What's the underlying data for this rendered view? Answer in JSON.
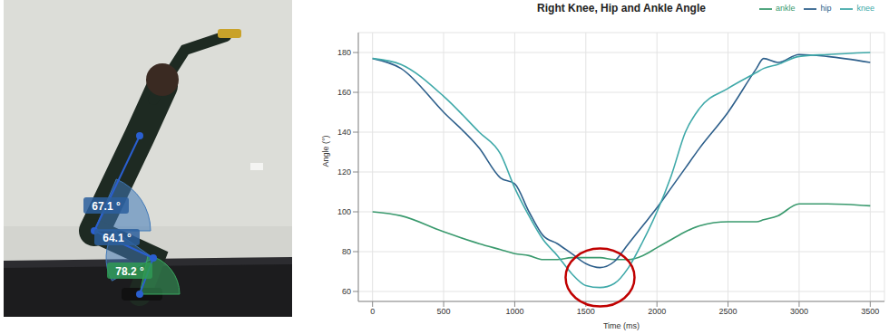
{
  "chart_data": {
    "type": "line",
    "title": "Right Knee, Hip and Ankle Angle",
    "x_label": "Time (ms)",
    "y_label": "Angle (°)",
    "x": [
      0,
      200,
      500,
      750,
      900,
      1000,
      1100,
      1200,
      1300,
      1400,
      1500,
      1600,
      1700,
      1800,
      1900,
      2000,
      2100,
      2200,
      2300,
      2500,
      2700,
      2750,
      2850,
      3000,
      3200,
      3500
    ],
    "series": [
      {
        "name": "ankle",
        "color": "#3a9a6e",
        "values": [
          100,
          98,
          90,
          84,
          81,
          79,
          78,
          76,
          76,
          77,
          77,
          77,
          76,
          76,
          78,
          82,
          86,
          90,
          93,
          95,
          95,
          96,
          98,
          104,
          104,
          103
        ]
      },
      {
        "name": "hip",
        "color": "#2d5f8b",
        "values": [
          177,
          172,
          150,
          132,
          117,
          114,
          100,
          88,
          84,
          79,
          74,
          72,
          75,
          84,
          93,
          102,
          112,
          122,
          132,
          150,
          172,
          177,
          175,
          179,
          178,
          175
        ]
      },
      {
        "name": "knee",
        "color": "#3fa9a9",
        "values": [
          177,
          174,
          158,
          140,
          129,
          112,
          98,
          86,
          78,
          69,
          63,
          62,
          64,
          72,
          85,
          100,
          118,
          140,
          152,
          162,
          170,
          172,
          174,
          178,
          179,
          180
        ]
      }
    ],
    "xlim": [
      -100,
      3600
    ],
    "xticks": [
      0,
      500,
      1000,
      1500,
      2000,
      2500,
      3000,
      3500
    ],
    "ylim": [
      55,
      190
    ],
    "yticks": [
      60,
      80,
      100,
      120,
      140,
      160,
      180
    ],
    "grid": true,
    "legend": "top right"
  },
  "photo": {
    "angle_labels": [
      "67.1 °",
      "64.1 °",
      "78.2 °"
    ]
  }
}
